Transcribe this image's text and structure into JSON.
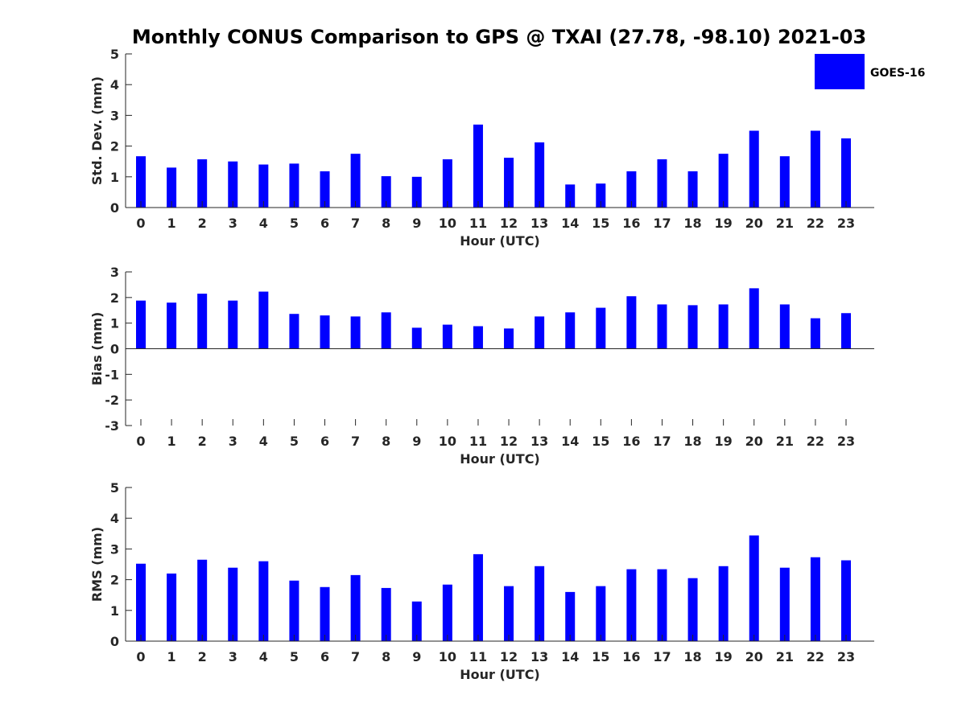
{
  "title": "Monthly CONUS Comparison to GPS @ TXAI (27.78, -98.10) 2021-03",
  "legend": {
    "label": "GOES-16",
    "color": "#0000ff",
    "placement": "top-right"
  },
  "bar_color": "#0000ff",
  "chart_data": [
    {
      "type": "bar",
      "xlabel": "Hour (UTC)",
      "ylabel": "Std. Dev. (mm)",
      "ylim": [
        0,
        5
      ],
      "yticks": [
        0,
        1,
        2,
        3,
        4,
        5
      ],
      "categories": [
        "0",
        "1",
        "2",
        "3",
        "4",
        "5",
        "6",
        "7",
        "8",
        "9",
        "10",
        "11",
        "12",
        "13",
        "14",
        "15",
        "16",
        "17",
        "18",
        "19",
        "20",
        "21",
        "22",
        "23"
      ],
      "series": [
        {
          "name": "GOES-16",
          "values": [
            1.67,
            1.3,
            1.57,
            1.5,
            1.4,
            1.43,
            1.18,
            1.75,
            1.02,
            1.0,
            1.57,
            2.7,
            1.62,
            2.12,
            0.75,
            0.78,
            1.18,
            1.57,
            1.18,
            1.75,
            2.5,
            1.67,
            2.5,
            2.25
          ]
        }
      ]
    },
    {
      "type": "bar",
      "xlabel": "Hour (UTC)",
      "ylabel": "Bias (mm)",
      "ylim": [
        -3,
        3
      ],
      "yticks": [
        -3,
        -2,
        -1,
        0,
        1,
        2,
        3
      ],
      "categories": [
        "0",
        "1",
        "2",
        "3",
        "4",
        "5",
        "6",
        "7",
        "8",
        "9",
        "10",
        "11",
        "12",
        "13",
        "14",
        "15",
        "16",
        "17",
        "18",
        "19",
        "20",
        "21",
        "22",
        "23"
      ],
      "series": [
        {
          "name": "GOES-16",
          "values": [
            1.88,
            1.8,
            2.15,
            1.88,
            2.23,
            1.36,
            1.3,
            1.26,
            1.42,
            0.82,
            0.94,
            0.88,
            0.79,
            1.26,
            1.42,
            1.6,
            2.05,
            1.73,
            1.7,
            1.73,
            2.36,
            1.73,
            1.19,
            1.39
          ]
        }
      ]
    },
    {
      "type": "bar",
      "xlabel": "Hour (UTC)",
      "ylabel": "RMS (mm)",
      "ylim": [
        0,
        5
      ],
      "yticks": [
        0,
        1,
        2,
        3,
        4,
        5
      ],
      "categories": [
        "0",
        "1",
        "2",
        "3",
        "4",
        "5",
        "6",
        "7",
        "8",
        "9",
        "10",
        "11",
        "12",
        "13",
        "14",
        "15",
        "16",
        "17",
        "18",
        "19",
        "20",
        "21",
        "22",
        "23"
      ],
      "series": [
        {
          "name": "GOES-16",
          "values": [
            2.52,
            2.2,
            2.65,
            2.39,
            2.6,
            1.97,
            1.76,
            2.15,
            1.73,
            1.29,
            1.84,
            2.83,
            1.79,
            2.44,
            1.6,
            1.79,
            2.34,
            2.34,
            2.05,
            2.44,
            3.44,
            2.39,
            2.73,
            2.63
          ]
        }
      ]
    }
  ]
}
